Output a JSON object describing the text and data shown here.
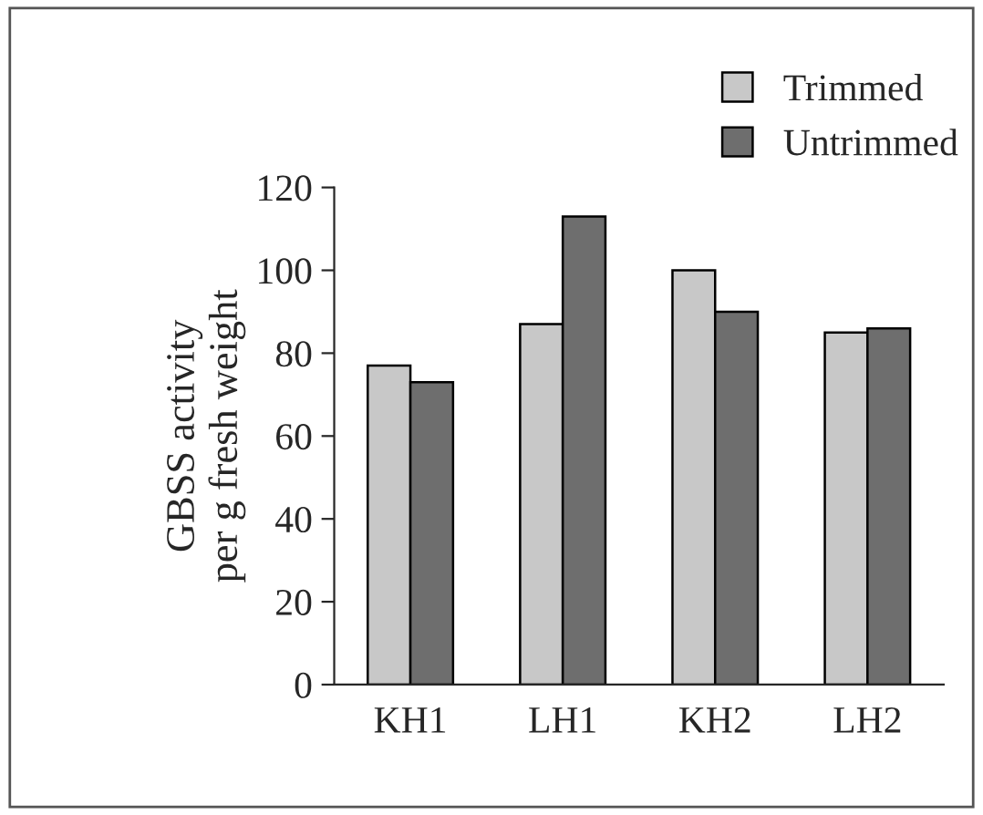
{
  "chart_data": {
    "type": "bar",
    "ylabel": "GBSS activity\nper g fresh weight",
    "categories": [
      "KH1",
      "LH1",
      "KH2",
      "LH2"
    ],
    "series": [
      {
        "name": "Trimmed",
        "color": "#c8c8c8",
        "values": [
          77,
          87,
          100,
          85
        ]
      },
      {
        "name": "Untrimmed",
        "color": "#6e6e6e",
        "values": [
          73,
          113,
          90,
          86
        ]
      }
    ],
    "ylim": [
      0,
      120
    ],
    "yticks": [
      0,
      20,
      40,
      60,
      80,
      100,
      120
    ],
    "grid": false,
    "legend": "top right"
  }
}
